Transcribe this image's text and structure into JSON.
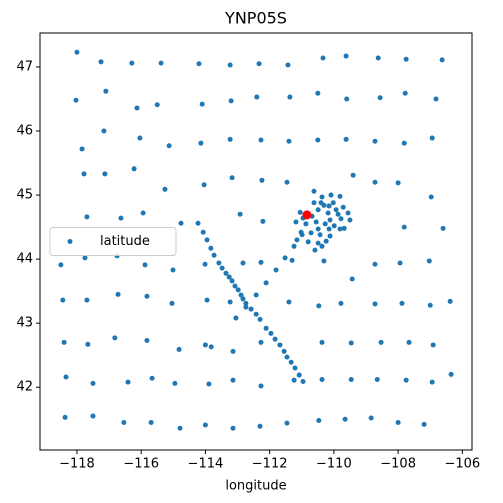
{
  "chart_data": {
    "type": "scatter",
    "title": "YNP05S",
    "xlabel": "longitude",
    "xlim": [
      -119.15,
      -105.7
    ],
    "ylim": [
      41.02,
      47.53
    ],
    "xticks": [
      {
        "value": -118,
        "label": "−118"
      },
      {
        "value": -116,
        "label": "−116"
      },
      {
        "value": -114,
        "label": "−114"
      },
      {
        "value": -112,
        "label": "−112"
      },
      {
        "value": -110,
        "label": "−110"
      },
      {
        "value": -108,
        "label": "−108"
      },
      {
        "value": -106,
        "label": "−106"
      }
    ],
    "yticks": [
      42,
      43,
      44,
      45,
      46,
      47
    ],
    "legend": "center left",
    "series": [
      {
        "name": "latitude",
        "color": "#1f77b4",
        "x": [
          -118,
          -117.25,
          -116.29,
          -115.38,
          -114.2,
          -113.23,
          -112.33,
          -111.43,
          -110.34,
          -109.62,
          -108.62,
          -107.75,
          -106.63,
          -118.03,
          -117.1,
          -116.13,
          -115.5,
          -114.1,
          -113.2,
          -112.4,
          -111.37,
          -110.5,
          -109.6,
          -108.56,
          -107.78,
          -106.82,
          -117.84,
          -117.16,
          -116.04,
          -115.13,
          -114.14,
          -113.23,
          -112.27,
          -111.4,
          -110.5,
          -109.62,
          -108.72,
          -107.81,
          -106.94,
          -117.78,
          -117.13,
          -116.22,
          -115.26,
          -114.04,
          -113.17,
          -112.24,
          -111.46,
          -109.4,
          -108.72,
          -108.0,
          -106.97,
          -117.69,
          -116.63,
          -115.94,
          -114.76,
          -114.23,
          -112.92,
          -112.21,
          -107.81,
          -106.6,
          -118.5,
          -117.75,
          -116.75,
          -115.88,
          -115.01,
          -114.01,
          -112.83,
          -112.27,
          -111.3,
          -110.31,
          -109.43,
          -108.72,
          -107.94,
          -107.03,
          -118.44,
          -117.69,
          -116.72,
          -115.82,
          -115.04,
          -113.95,
          -113.23,
          -111.4,
          -110.47,
          -109.78,
          -108.72,
          -107.88,
          -107.0,
          -106.38,
          -118.4,
          -117.66,
          -116.82,
          -115.82,
          -114.82,
          -114.0,
          -113.82,
          -113.14,
          -112.27,
          -110.37,
          -109.46,
          -108.53,
          -107.66,
          -106.91,
          -118.34,
          -117.5,
          -116.41,
          -115.66,
          -114.95,
          -113.89,
          -113.14,
          -112.27,
          -111.24,
          -110.37,
          -109.46,
          -108.65,
          -107.75,
          -106.94,
          -106.35,
          -118.37,
          -117.5,
          -116.54,
          -115.69,
          -114.79,
          -114.0,
          -113.14,
          -112.3,
          -111.46,
          -110.47,
          -109.65,
          -108.84,
          -108.0,
          -107.19,
          -114.07,
          -113.95,
          -113.83,
          -113.73,
          -113.58,
          -113.48,
          -113.36,
          -113.26,
          -113.17,
          -113.08,
          -112.98,
          -112.89,
          -112.83,
          -112.74,
          -112.58,
          -112.42,
          -112.3,
          -112.11,
          -111.96,
          -111.83,
          -111.68,
          -111.55,
          -111.46,
          -111.33,
          -111.21,
          -111.08,
          -110.96,
          -110.99,
          -111.24,
          -111.52,
          -111.8,
          -112.11,
          -112.42,
          -112.74,
          -113.05,
          -110.62,
          -110.37,
          -110.09,
          -109.81,
          -110.62,
          -110.31,
          -110.02,
          -109.71,
          -111.05,
          -110.49,
          -110.18,
          -109.87,
          -109.56,
          -111.18,
          -110.87,
          -110.55,
          -110.27,
          -109.99,
          -109.68,
          -111.02,
          -110.71,
          -110.43,
          -110.12,
          -109.81,
          -111.15,
          -110.8,
          -110.49,
          -110.24,
          -110.59,
          -110.37,
          -110.96,
          -110.68,
          -110.12,
          -109.78,
          -110.15,
          -110.49,
          -109.5,
          -110.4,
          -110.15,
          -109.93
        ],
        "y": [
          47.23,
          47.08,
          47.06,
          47.06,
          47.05,
          47.03,
          47.05,
          47.03,
          47.14,
          47.17,
          47.14,
          47.12,
          47.11,
          46.48,
          46.62,
          46.36,
          46.41,
          46.42,
          46.47,
          46.53,
          46.53,
          46.59,
          46.5,
          46.52,
          46.59,
          46.5,
          45.72,
          46.0,
          45.89,
          45.77,
          45.81,
          45.87,
          45.86,
          45.84,
          45.86,
          45.87,
          45.84,
          45.81,
          45.89,
          45.33,
          45.33,
          45.41,
          45.09,
          45.16,
          45.27,
          45.23,
          45.2,
          45.31,
          45.2,
          45.19,
          44.97,
          44.66,
          44.64,
          44.72,
          44.56,
          44.56,
          44.7,
          44.59,
          44.5,
          44.48,
          43.91,
          44.02,
          44.05,
          43.91,
          43.83,
          43.92,
          43.94,
          43.95,
          43.98,
          43.97,
          43.69,
          43.92,
          43.94,
          43.97,
          43.36,
          43.36,
          43.45,
          43.42,
          43.31,
          43.36,
          43.33,
          43.33,
          43.27,
          43.31,
          43.3,
          43.31,
          43.28,
          43.34,
          42.7,
          42.67,
          42.77,
          42.73,
          42.59,
          42.66,
          42.63,
          42.56,
          42.7,
          42.7,
          42.69,
          42.7,
          42.7,
          42.66,
          42.16,
          42.06,
          42.08,
          42.14,
          42.06,
          42.05,
          42.11,
          42.02,
          42.11,
          42.12,
          42.12,
          42.12,
          42.11,
          42.08,
          42.2,
          41.53,
          41.55,
          41.45,
          41.45,
          41.36,
          41.41,
          41.36,
          41.39,
          41.44,
          41.48,
          41.5,
          41.52,
          41.45,
          41.42,
          44.42,
          44.3,
          44.17,
          44.06,
          43.94,
          43.86,
          43.78,
          43.72,
          43.66,
          43.58,
          43.52,
          43.44,
          43.38,
          43.31,
          43.22,
          43.14,
          43.06,
          42.92,
          42.84,
          42.75,
          42.66,
          42.56,
          42.47,
          42.39,
          42.3,
          42.19,
          42.09,
          44.38,
          44.2,
          44.02,
          43.83,
          43.63,
          43.44,
          43.25,
          43.08,
          45.06,
          44.97,
          45.0,
          44.98,
          44.88,
          44.84,
          44.88,
          44.81,
          44.73,
          44.77,
          44.72,
          44.7,
          44.72,
          44.58,
          44.55,
          44.58,
          44.55,
          44.52,
          44.48,
          44.42,
          44.41,
          44.38,
          44.36,
          44.47,
          44.3,
          44.27,
          44.25,
          44.28,
          44.14,
          44.2,
          44.64,
          44.67,
          44.61,
          44.63,
          44.47,
          44.47,
          44.61,
          44.88,
          44.83,
          44.77
        ]
      },
      {
        "color": "#ff0000",
        "x": [
          -110.84
        ],
        "y": [
          44.69
        ]
      }
    ]
  }
}
